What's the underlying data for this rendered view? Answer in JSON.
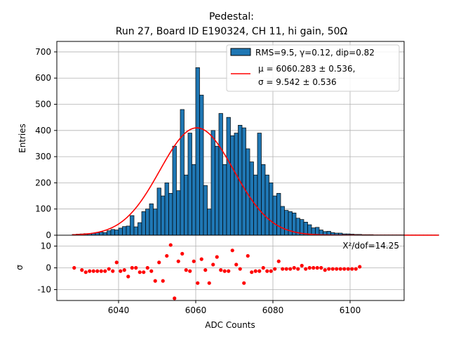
{
  "chart_data": {
    "type": "bar",
    "title_line1": "Pedestal:",
    "title_line2": "Run 27, Board ID E190324, CH 11, hi gain, 50Ω",
    "xlabel": "ADC Counts",
    "ylabel_top": "Entries",
    "ylabel_bottom": "σ",
    "xlim": [
      6024,
      6114
    ],
    "ylim_top": [
      0,
      740
    ],
    "ylim_bottom": [
      -15,
      15
    ],
    "xticks": [
      6040,
      6060,
      6080,
      6100
    ],
    "yticks_top": [
      0,
      100,
      200,
      300,
      400,
      500,
      600,
      700
    ],
    "yticks_bottom": [
      -10,
      0,
      10
    ],
    "grid": true,
    "legend_position": "top-right",
    "legend": {
      "hist_label": "RMS=9.5, γ=0.12, dip=0.82",
      "fit_line1": "μ = 6060.283 ± 0.536,",
      "fit_line2": "σ = 9.542 ± 0.536"
    },
    "chi2_label": "X²/dof=14.25",
    "hist_color": "#1f77b4",
    "fit_color": "#ff0000",
    "residual_color": "#ff0000",
    "fit": {
      "mu": 6060.283,
      "sigma": 9.542,
      "amplitude": 410
    },
    "bins": {
      "start": 6028,
      "width": 1,
      "counts": [
        3,
        4,
        5,
        6,
        6,
        8,
        10,
        12,
        10,
        17,
        22,
        20,
        27,
        33,
        35,
        75,
        32,
        48,
        90,
        100,
        120,
        100,
        180,
        150,
        200,
        160,
        340,
        170,
        480,
        230,
        390,
        270,
        640,
        535,
        190,
        100,
        400,
        340,
        465,
        270,
        450,
        380,
        390,
        420,
        410,
        330,
        280,
        230,
        390,
        270,
        230,
        200,
        150,
        160,
        110,
        95,
        90,
        85,
        65,
        60,
        50,
        40,
        28,
        30,
        20,
        14,
        15,
        10,
        8,
        8,
        5,
        5,
        4,
        3,
        3,
        2,
        2,
        2,
        1,
        1,
        1,
        1,
        1,
        1,
        1,
        1,
        1,
        1,
        1,
        1,
        1,
        1,
        1,
        1,
        1
      ]
    },
    "residuals": {
      "x": [
        6028.5,
        6030.5,
        6031.5,
        6032.5,
        6033.5,
        6034.5,
        6035.5,
        6036.5,
        6037.5,
        6038.5,
        6039.5,
        6040.5,
        6041.5,
        6042.5,
        6043.5,
        6044.5,
        6045.5,
        6046.5,
        6047.5,
        6048.5,
        6049.5,
        6050.5,
        6051.5,
        6052.5,
        6053.5,
        6054.5,
        6055.5,
        6056.5,
        6057.5,
        6058.5,
        6059.5,
        6060.5,
        6061.5,
        6062.5,
        6063.5,
        6064.5,
        6065.5,
        6066.5,
        6067.5,
        6068.5,
        6069.5,
        6070.5,
        6071.5,
        6072.5,
        6073.5,
        6074.5,
        6075.5,
        6076.5,
        6077.5,
        6078.5,
        6079.5,
        6080.5,
        6081.5,
        6082.5,
        6083.5,
        6084.5,
        6085.5,
        6086.5,
        6087.5,
        6088.5,
        6089.5,
        6090.5,
        6091.5,
        6092.5,
        6093.5,
        6094.5,
        6095.5,
        6096.5,
        6097.5,
        6098.5,
        6099.5,
        6100.5,
        6101.5,
        6102.5
      ],
      "values": [
        0,
        -1,
        -2,
        -1.5,
        -1.5,
        -1.5,
        -1.5,
        -1.5,
        -0.5,
        -1.5,
        2.5,
        -1.5,
        -1,
        -4,
        0,
        0,
        -2,
        -2,
        0,
        -1.5,
        -6,
        2.5,
        -6,
        5.5,
        10.5,
        -14,
        3,
        6.5,
        -1,
        -1.5,
        3,
        -7,
        4,
        -1,
        -7,
        1.5,
        5,
        -1,
        -1.5,
        -1.5,
        8,
        1.5,
        -0.5,
        -7,
        5.5,
        -2,
        -1.5,
        -1.5,
        0,
        -1.5,
        -1.5,
        -0.5,
        3,
        -0.5,
        -0.5,
        -0.5,
        0,
        -0.5,
        1,
        -0.5,
        0,
        0,
        0,
        0,
        -1,
        -0.5,
        -0.5,
        -0.5,
        -0.5,
        -0.5,
        -0.5,
        -0.5,
        -0.5,
        0.5
      ]
    }
  }
}
